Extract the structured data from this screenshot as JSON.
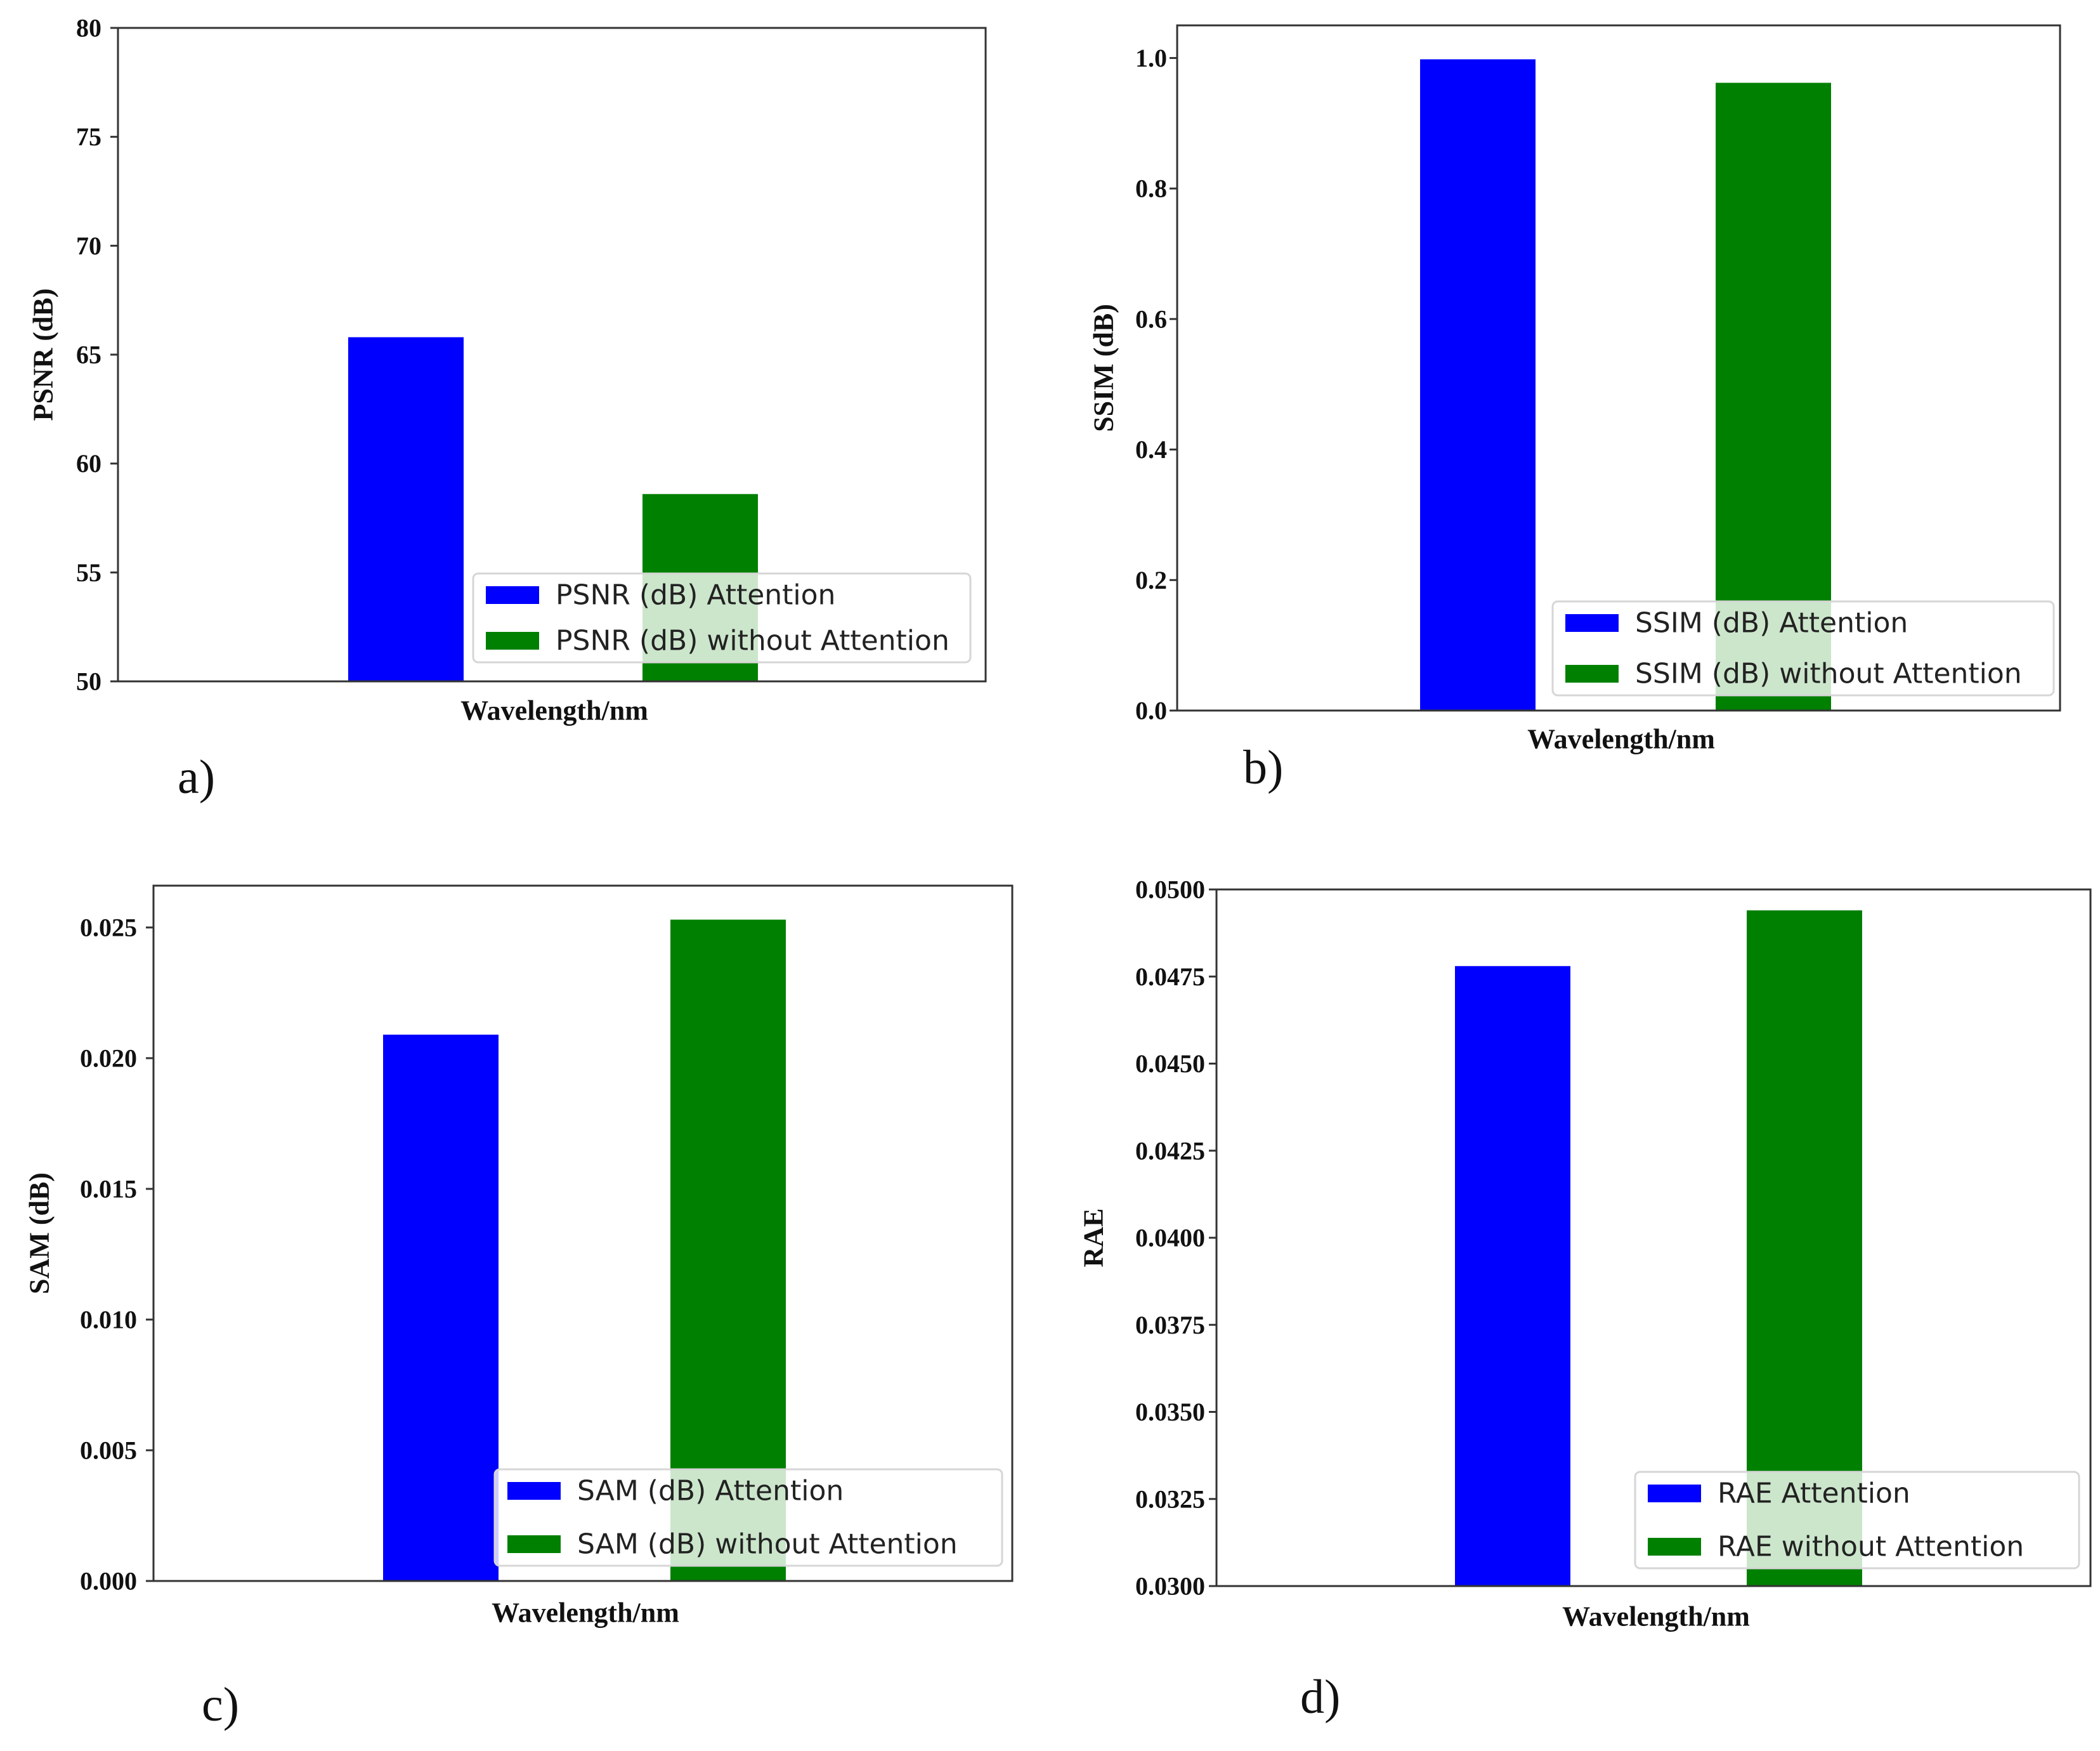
{
  "figure": {
    "panel_labels": [
      "a)",
      "b)",
      "c)",
      "d)"
    ]
  },
  "colors": {
    "attention": "#0000ff",
    "without_attention": "#008000",
    "axis": "#333333"
  },
  "chart_data": [
    {
      "type": "bar",
      "panel": "a)",
      "title": "",
      "xlabel": "Wavelength/nm",
      "ylabel": "PSNR (dB)",
      "ylim": [
        50,
        80
      ],
      "yticks": [
        "50",
        "55",
        "60",
        "65",
        "70",
        "75",
        "80"
      ],
      "ytick_values": [
        50,
        55,
        60,
        65,
        70,
        75,
        80
      ],
      "grid": false,
      "legend_position": "lower-right",
      "series": [
        {
          "name": "PSNR (dB) Attention",
          "values": [
            65.8
          ]
        },
        {
          "name": "PSNR (dB) without Attention",
          "values": [
            58.6
          ]
        }
      ]
    },
    {
      "type": "bar",
      "panel": "b)",
      "title": "",
      "xlabel": "Wavelength/nm",
      "ylabel": "SSIM (dB)",
      "ylim": [
        0,
        1.05
      ],
      "yticks": [
        "0.0",
        "0.2",
        "0.4",
        "0.6",
        "0.8",
        "1.0"
      ],
      "ytick_values": [
        0,
        0.2,
        0.4,
        0.6,
        0.8,
        1.0
      ],
      "grid": false,
      "legend_position": "lower-right",
      "series": [
        {
          "name": "SSIM (dB) Attention",
          "values": [
            0.998
          ]
        },
        {
          "name": "SSIM (dB) without Attention",
          "values": [
            0.962
          ]
        }
      ]
    },
    {
      "type": "bar",
      "panel": "c)",
      "title": "",
      "xlabel": "Wavelength/nm",
      "ylabel": "SAM (dB)",
      "ylim": [
        0,
        0.0266
      ],
      "yticks": [
        "0.000",
        "0.005",
        "0.010",
        "0.015",
        "0.020",
        "0.025"
      ],
      "ytick_values": [
        0,
        0.005,
        0.01,
        0.015,
        0.02,
        0.025
      ],
      "grid": false,
      "legend_position": "lower-right",
      "series": [
        {
          "name": "SAM (dB) Attention",
          "values": [
            0.0209
          ]
        },
        {
          "name": "SAM (dB) without Attention",
          "values": [
            0.0253
          ]
        }
      ]
    },
    {
      "type": "bar",
      "panel": "d)",
      "title": "",
      "xlabel": "Wavelength/nm",
      "ylabel": "RAE",
      "ylim": [
        0.03,
        0.05
      ],
      "yticks": [
        "0.0300",
        "0.0325",
        "0.0350",
        "0.0375",
        "0.0400",
        "0.0425",
        "0.0450",
        "0.0475",
        "0.0500"
      ],
      "ytick_values": [
        0.03,
        0.0325,
        0.035,
        0.0375,
        0.04,
        0.0425,
        0.045,
        0.0475,
        0.05
      ],
      "grid": false,
      "legend_position": "lower-right",
      "series": [
        {
          "name": "RAE Attention",
          "values": [
            0.0478
          ]
        },
        {
          "name": "RAE without Attention",
          "values": [
            0.0494
          ]
        }
      ]
    }
  ]
}
